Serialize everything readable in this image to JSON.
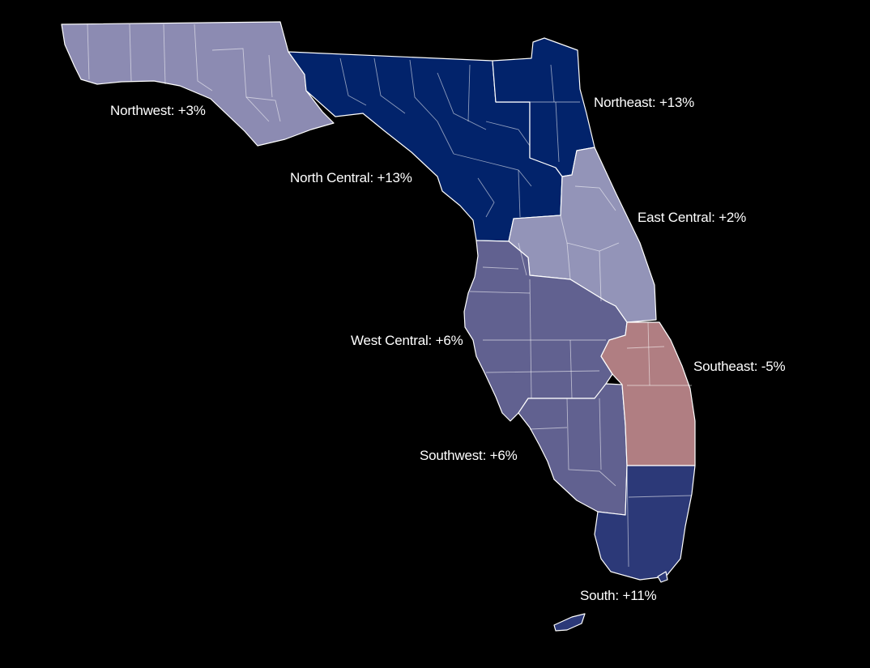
{
  "map": {
    "regions": [
      {
        "id": "northwest",
        "name": "Northwest",
        "value": "+3%",
        "label": "Northwest: +3%",
        "color": "#8c8bb2"
      },
      {
        "id": "north-central",
        "name": "North Central",
        "value": "+13%",
        "label": "North Central: +13%",
        "color": "#02236b"
      },
      {
        "id": "northeast",
        "name": "Northeast",
        "value": "+13%",
        "label": "Northeast: +13%",
        "color": "#02236b"
      },
      {
        "id": "east-central",
        "name": "East Central",
        "value": "+2%",
        "label": "East Central: +2%",
        "color": "#9394b8"
      },
      {
        "id": "west-central",
        "name": "West Central",
        "value": "+6%",
        "label": "West Central: +6%",
        "color": "#616190"
      },
      {
        "id": "southwest",
        "name": "Southwest",
        "value": "+6%",
        "label": "Southwest: +6%",
        "color": "#616190"
      },
      {
        "id": "southeast",
        "name": "Southeast",
        "value": "-5%",
        "label": "Southeast: -5%",
        "color": "#b07e82"
      },
      {
        "id": "south",
        "name": "South",
        "value": "+11%",
        "label": "South: +11%",
        "color": "#2c3978"
      }
    ]
  }
}
